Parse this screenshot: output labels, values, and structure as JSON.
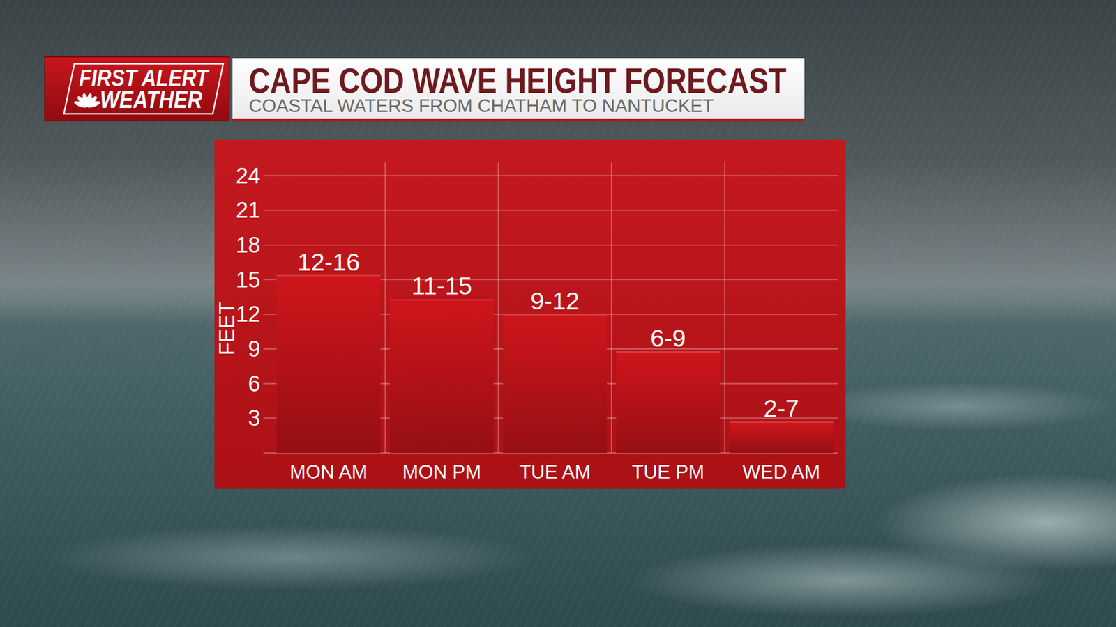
{
  "chart_data": {
    "type": "bar",
    "title": "CAPE COD WAVE HEIGHT FORECAST",
    "subtitle": "COASTAL WATERS FROM CHATHAM TO NANTUCKET",
    "y_label": "FEET",
    "categories": [
      "MON AM",
      "MON PM",
      "TUE AM",
      "TUE PM",
      "WED AM"
    ],
    "values": [
      15.4,
      13.3,
      12,
      8.8,
      2.7
    ],
    "annotations": [
      "12-16",
      "11-15",
      "9-12",
      "6-9",
      "2-7"
    ],
    "color": "#cf151b",
    "ylim": [
      0,
      24
    ],
    "yticks": [
      3,
      6,
      9,
      12,
      15,
      18,
      21,
      24
    ],
    "grid": true
  },
  "logo": {
    "line1": "FIRST ALERT",
    "line2": "WEATHER"
  }
}
